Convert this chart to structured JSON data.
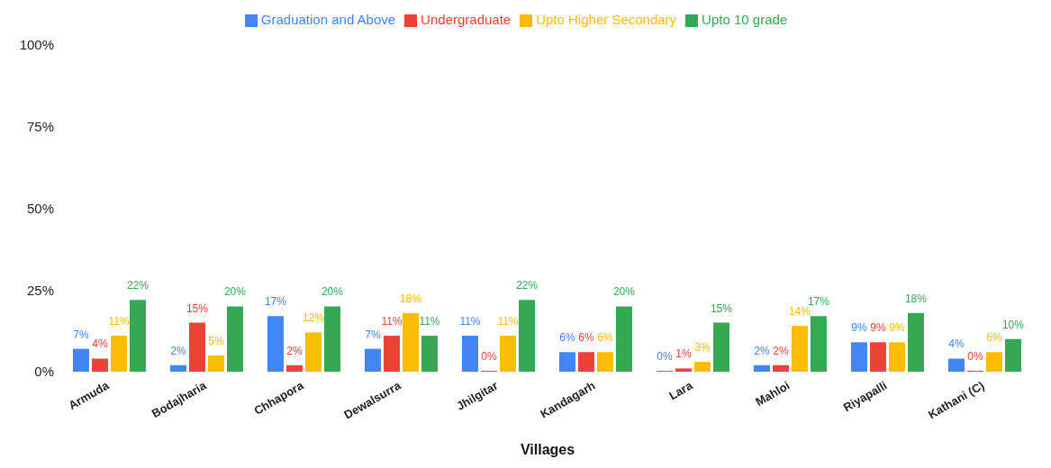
{
  "chart_data": {
    "type": "bar",
    "xlabel": "Villages",
    "categories": [
      "Armuda",
      "Bodajharia",
      "Chhapora",
      "Dewalsurra",
      "Jhilgitar",
      "Kandagarh",
      "Lara",
      "Mahloi",
      "Riyapalli",
      "Kathani (C)"
    ],
    "series": [
      {
        "name": "Graduation and Above",
        "color": "#4285f4",
        "values": [
          7,
          2,
          17,
          7,
          11,
          6,
          0,
          2,
          9,
          4
        ],
        "value_labels": [
          "7%",
          "2%",
          "17%",
          "7%",
          "11%",
          "6%",
          "0%",
          "2%",
          "9%",
          "4%"
        ]
      },
      {
        "name": "Undergraduate",
        "color": "#ea4335",
        "values": [
          4,
          15,
          2,
          11,
          0,
          6,
          1,
          2,
          9,
          0
        ],
        "value_labels": [
          "4%",
          "15%",
          "2%",
          "11%",
          "0%",
          "6%",
          "1%",
          "2%",
          "9%",
          "0%"
        ]
      },
      {
        "name": "Upto Higher Secondary",
        "color": "#fbbc04",
        "values": [
          11,
          5,
          12,
          18,
          11,
          6,
          3,
          14,
          9,
          6
        ],
        "value_labels": [
          "11%",
          "5%",
          "12%",
          "18%",
          "11%",
          "6%",
          "3%",
          "14%",
          "9%",
          "6%"
        ]
      },
      {
        "name": "Upto 10 grade",
        "color": "#34a853",
        "values": [
          22,
          20,
          20,
          11,
          22,
          20,
          15,
          17,
          18,
          10
        ],
        "value_labels": [
          "22%",
          "20%",
          "20%",
          "11%",
          "22%",
          "20%",
          "15%",
          "17%",
          "18%",
          "10%"
        ]
      }
    ],
    "ylim": [
      0,
      100
    ],
    "yticks": [
      {
        "value": 0,
        "label": "0%"
      },
      {
        "value": 25,
        "label": "25%"
      },
      {
        "value": 50,
        "label": "50%"
      },
      {
        "value": 75,
        "label": "75%"
      },
      {
        "value": 100,
        "label": "100%"
      }
    ],
    "grid": false,
    "legend": "top"
  }
}
